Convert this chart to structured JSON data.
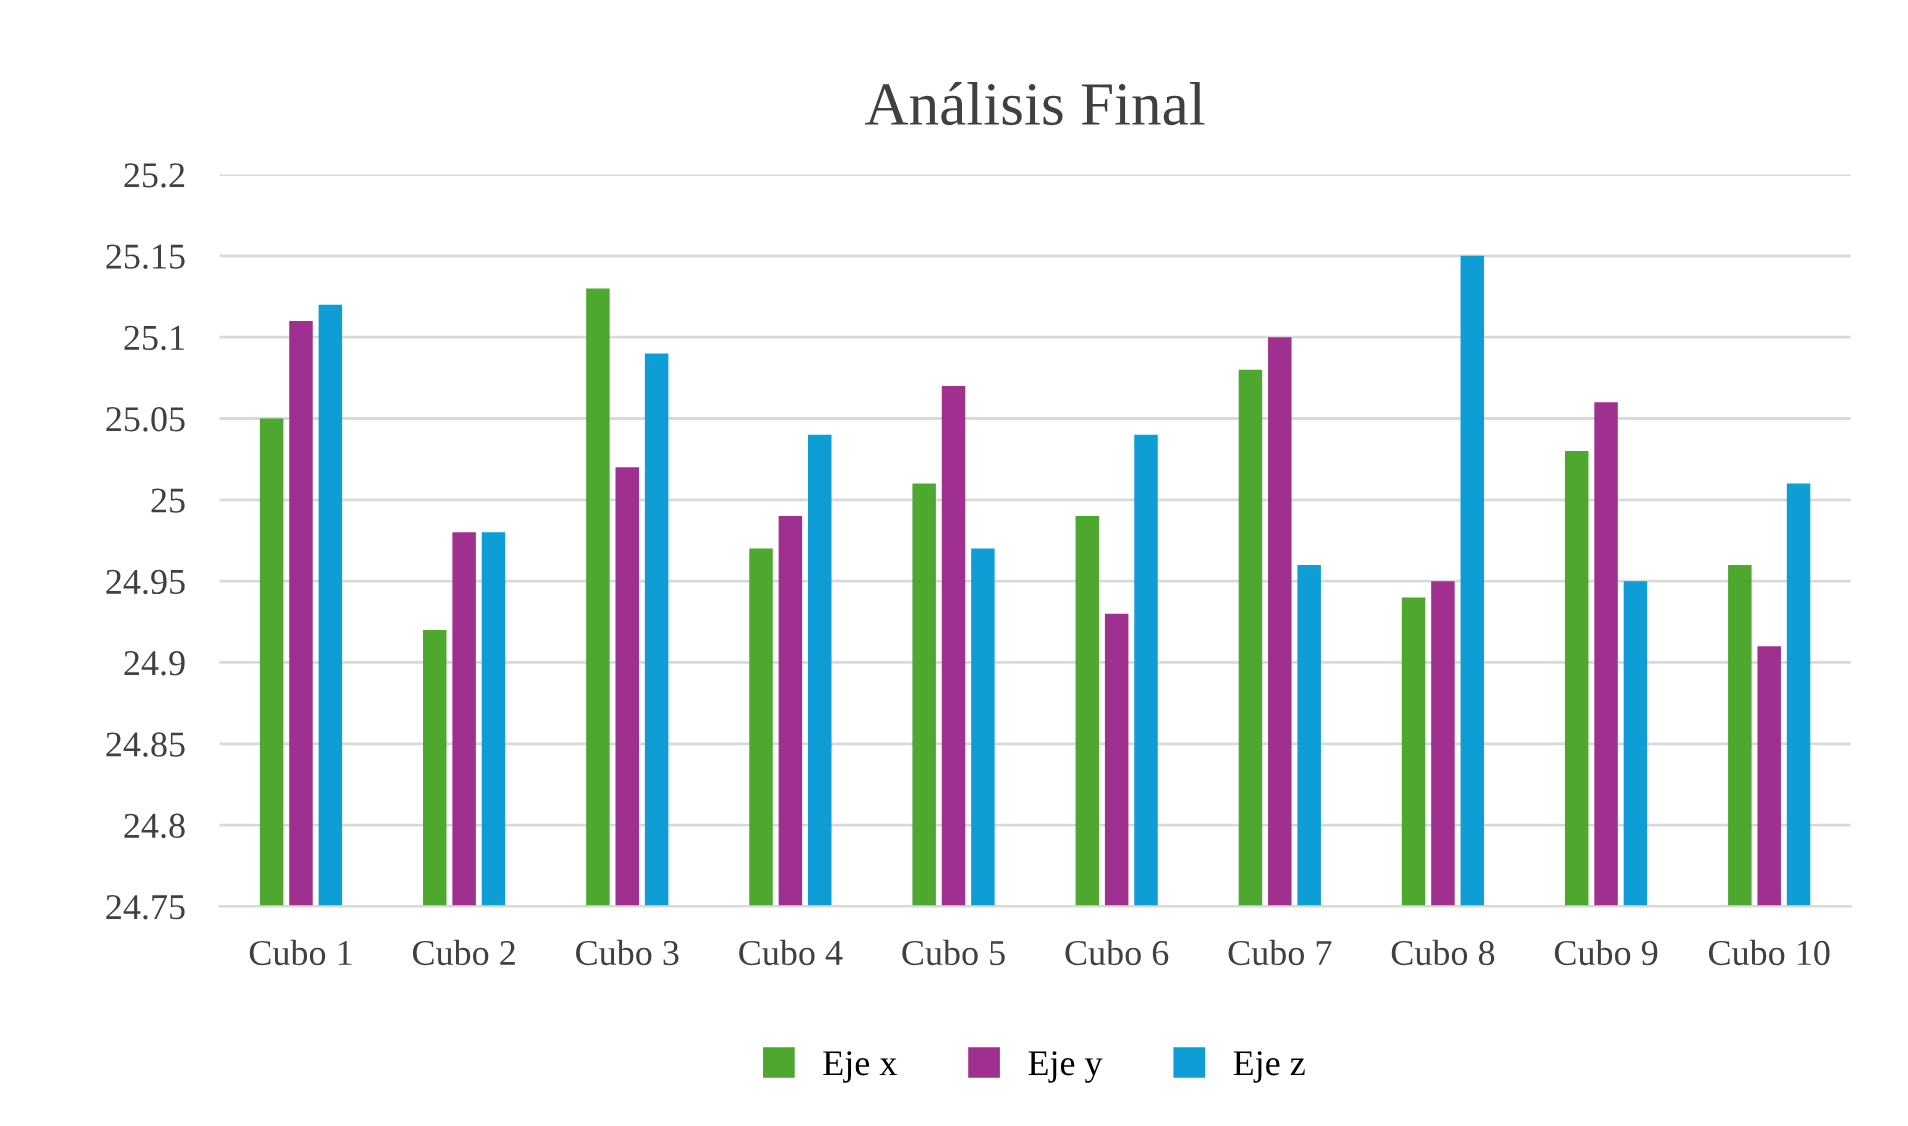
{
  "chart_data": {
    "type": "bar",
    "title": "Análisis Final",
    "categories": [
      "Cubo 1",
      "Cubo 2",
      "Cubo 3",
      "Cubo 4",
      "Cubo 5",
      "Cubo 6",
      "Cubo 7",
      "Cubo 8",
      "Cubo 9",
      "Cubo 10"
    ],
    "series": [
      {
        "name": "Eje x",
        "color": "#4ea72e",
        "values": [
          25.05,
          24.92,
          25.13,
          24.97,
          25.01,
          24.99,
          25.08,
          24.94,
          25.03,
          24.96
        ]
      },
      {
        "name": "Eje y",
        "color": "#a0308f",
        "values": [
          25.11,
          24.98,
          25.02,
          24.99,
          25.07,
          24.93,
          25.1,
          24.95,
          25.06,
          24.91
        ]
      },
      {
        "name": "Eje z",
        "color": "#0e9ed5",
        "values": [
          25.12,
          24.98,
          25.09,
          25.04,
          24.97,
          25.04,
          24.96,
          25.15,
          24.95,
          25.01
        ]
      }
    ],
    "ylim": [
      24.75,
      25.2
    ],
    "yticks": [
      24.75,
      24.8,
      24.85,
      24.9,
      24.95,
      25,
      25.05,
      25.1,
      25.15,
      25.2
    ],
    "grid": "y",
    "legend": "bottom"
  }
}
